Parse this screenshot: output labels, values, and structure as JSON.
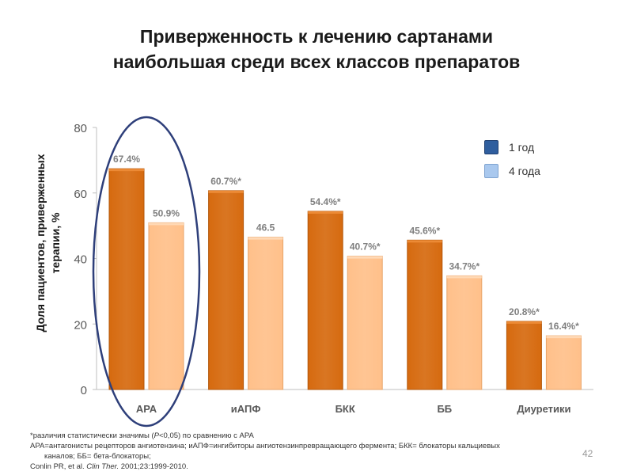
{
  "title": {
    "line1": "Приверженность к лечению сартанами",
    "line2": "наибольшая среди всех классов препаратов"
  },
  "chart_data": {
    "type": "bar",
    "categories": [
      "АРА",
      "иАПФ",
      "БКК",
      "ББ",
      "Диуретики"
    ],
    "series": [
      {
        "name": "1 год",
        "values": [
          67.4,
          60.7,
          54.4,
          45.6,
          20.8
        ],
        "labels": [
          "67.4%",
          "60.7%*",
          "54.4%*",
          "45.6%*",
          "20.8%*"
        ],
        "color": "#D66A0F"
      },
      {
        "name": "4 года",
        "values": [
          50.9,
          46.5,
          40.7,
          34.7,
          16.4
        ],
        "labels": [
          "50.9%",
          "46.5",
          "40.7%*",
          "34.7%*",
          "16.4%*"
        ],
        "color": "#FFC08A"
      }
    ],
    "ylabel_line1": "Доля пациентов, приверженных",
    "ylabel_line2": "терапии, %",
    "ylim": [
      0,
      80
    ],
    "yticks": [
      "0",
      "20",
      "40",
      "60",
      "80"
    ],
    "grid": false,
    "legend_position": "top-right",
    "highlight": {
      "category": "АРА",
      "shape": "ellipse",
      "color": "#2E3F7A"
    }
  },
  "legend": {
    "items": [
      {
        "label": "1 год",
        "color": "#2F5E9E"
      },
      {
        "label": "4 года",
        "color": "#A9C8EE"
      }
    ]
  },
  "footnotes": {
    "line1_pre": "*различия статистически значимы (",
    "line1_p": "Р",
    "line1_post": "<0,05) по сравнению с АРА",
    "line2": "АРА=антагонисты рецепторов ангиотензина; иАПФ=ингибиторы ангиотензинпревращающего фермента; БКК= блокаторы кальциевых",
    "line3": "каналов; ББ= бета-блокаторы;",
    "line4_pre": "Conlin PR, et al. ",
    "line4_journal": "Clin Ther.",
    "line4_post": " 2001;23:1999-2010."
  },
  "page_number": "42"
}
